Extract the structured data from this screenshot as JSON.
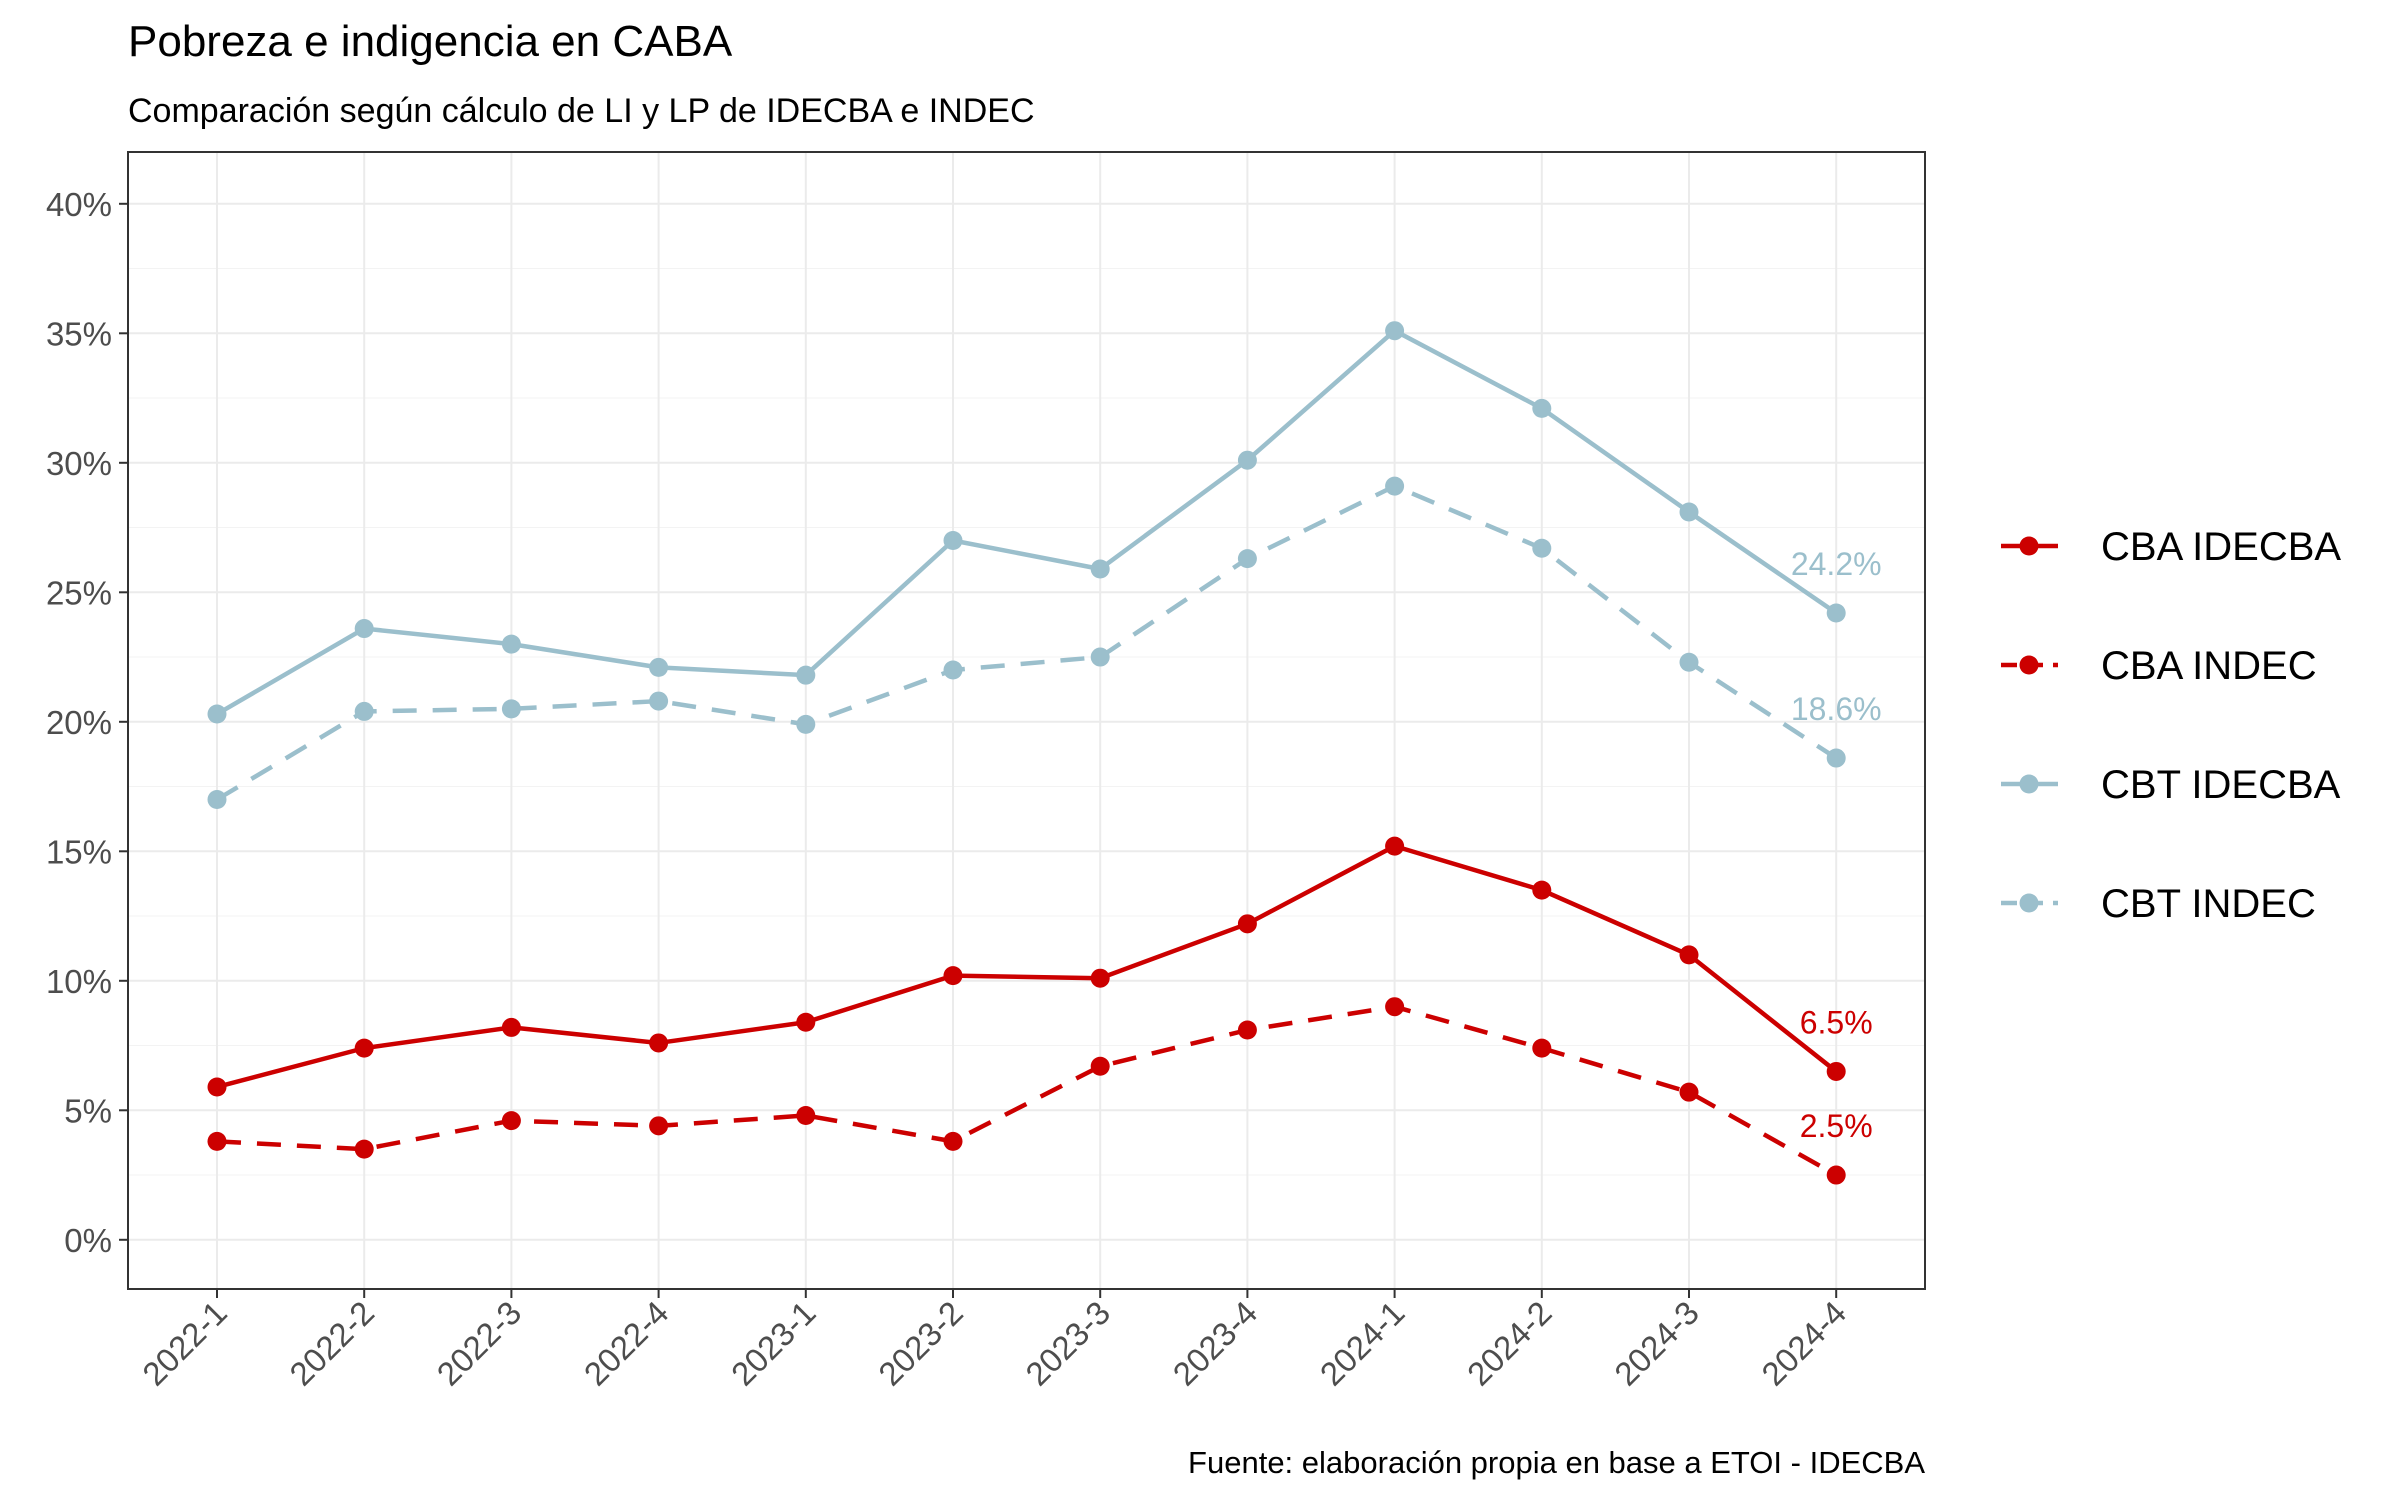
{
  "chart_data": {
    "type": "line",
    "title": "Pobreza e indigencia en CABA",
    "subtitle": "Comparación según cálculo de LI y LP de IDECBA e INDEC",
    "caption": "Fuente: elaboración propia en base a ETOI - IDECBA",
    "xlabel": "",
    "ylabel": "",
    "categories": [
      "2022-1",
      "2022-2",
      "2022-3",
      "2022-4",
      "2023-1",
      "2023-2",
      "2023-3",
      "2023-4",
      "2024-1",
      "2024-2",
      "2024-3",
      "2024-4"
    ],
    "ylim": [
      -1.9,
      42
    ],
    "y_ticks": [
      0,
      5,
      10,
      15,
      20,
      25,
      30,
      35,
      40
    ],
    "y_tick_labels": [
      "0%",
      "5%",
      "10%",
      "15%",
      "20%",
      "25%",
      "30%",
      "35%",
      "40%"
    ],
    "grid": true,
    "legend_position": "right",
    "series": [
      {
        "name": "CBA IDECBA",
        "color": "#cc0000",
        "dash": "solid",
        "values": [
          5.9,
          7.4,
          8.2,
          7.6,
          8.4,
          10.2,
          10.1,
          12.2,
          15.2,
          13.5,
          11.0,
          6.5
        ],
        "end_label": "6.5%"
      },
      {
        "name": "CBA INDEC",
        "color": "#cc0000",
        "dash": "dashed",
        "values": [
          3.8,
          3.5,
          4.6,
          4.4,
          4.8,
          3.8,
          6.7,
          8.1,
          9.0,
          7.4,
          5.7,
          2.5
        ],
        "end_label": "2.5%"
      },
      {
        "name": "CBT IDECBA",
        "color": "#9bbfcc",
        "dash": "solid",
        "values": [
          20.3,
          23.6,
          23.0,
          22.1,
          21.8,
          27.0,
          25.9,
          30.1,
          35.1,
          32.1,
          28.1,
          24.2
        ],
        "end_label": "24.2%"
      },
      {
        "name": "CBT INDEC",
        "color": "#9bbfcc",
        "dash": "dashed",
        "values": [
          17.0,
          20.4,
          20.5,
          20.8,
          19.9,
          22.0,
          22.5,
          26.3,
          29.1,
          26.7,
          22.3,
          18.6
        ],
        "end_label": "18.6%"
      }
    ]
  }
}
